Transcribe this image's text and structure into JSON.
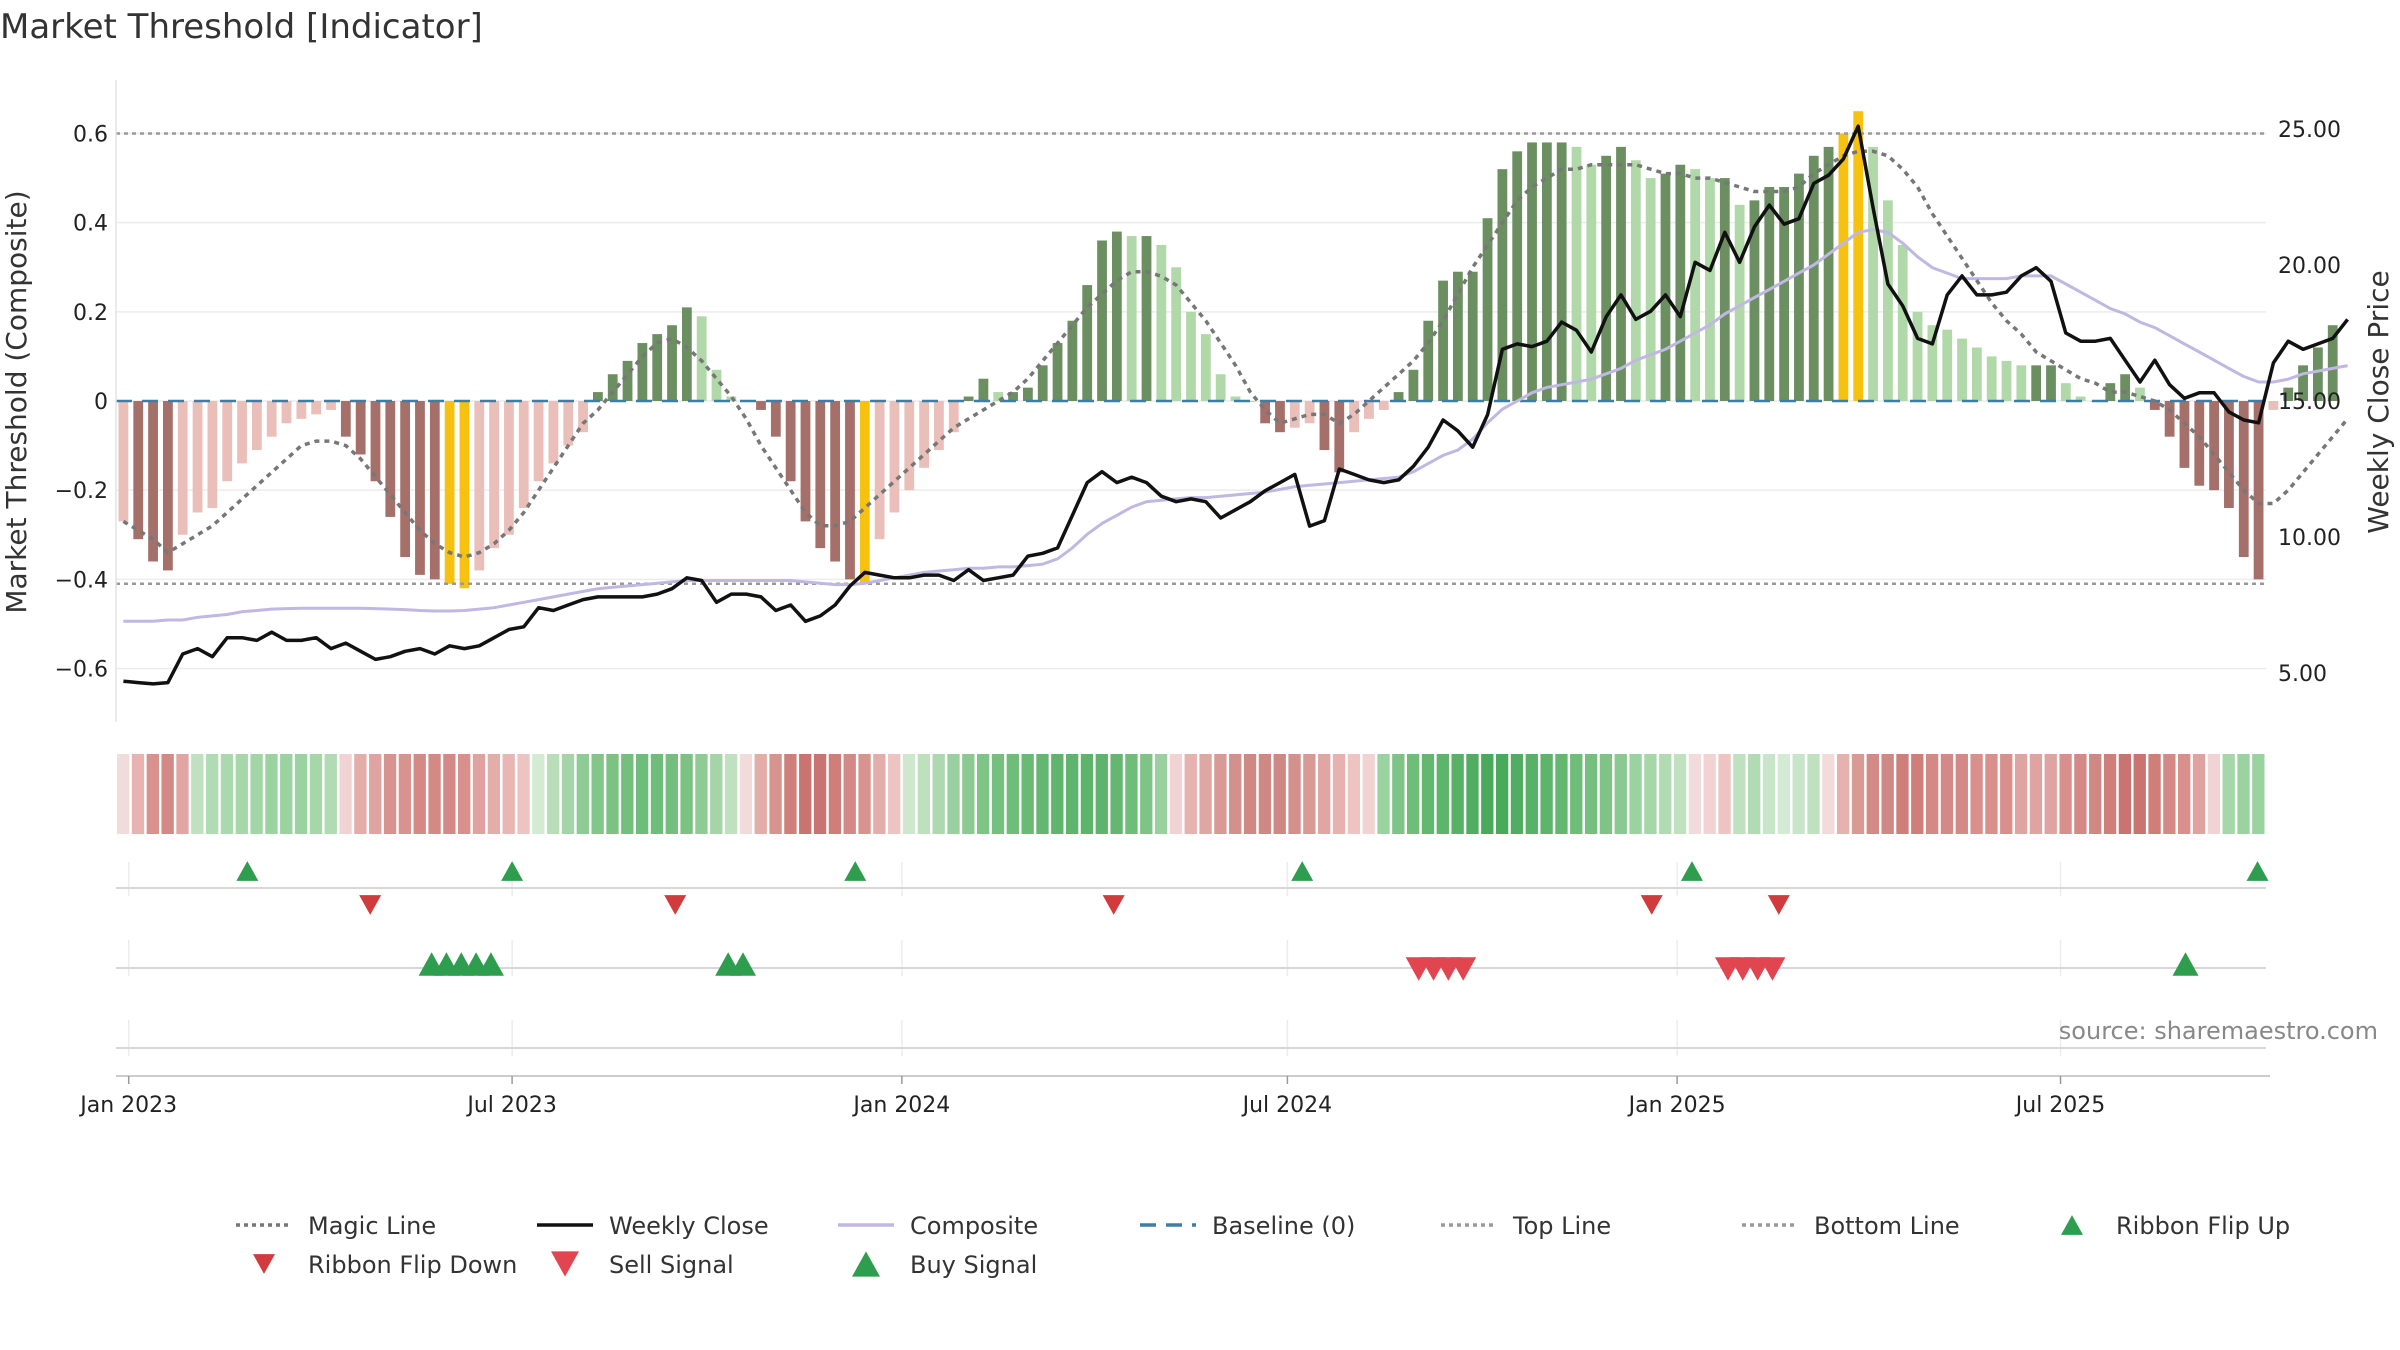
{
  "chart_data": {
    "type": "bar",
    "title": "Market Threshold [Indicator]",
    "ylabel_left": "Market Threshold (Composite)",
    "ylabel_right": "Weekly Close Price",
    "source": "source: sharemaestro.com",
    "ylim_left": [
      -0.72,
      0.72
    ],
    "ylim_right": [
      3.2,
      26.8
    ],
    "yticks_left": [
      -0.6,
      -0.4,
      -0.2,
      0,
      0.2,
      0.4,
      0.6
    ],
    "yticks_left_labels": [
      "−0.6",
      "−0.4",
      "−0.2",
      "0",
      "0.2",
      "0.4",
      "0.6"
    ],
    "yticks_right": [
      5,
      10,
      15,
      20,
      25
    ],
    "yticks_right_labels": [
      "5.00",
      "10.00",
      "15.00",
      "20.00",
      "25.00"
    ],
    "x_start": "2022-12-26",
    "x_end": "2025-10-06",
    "x_ticks": [
      {
        "date": "2023-01-01",
        "label": "Jan 2023"
      },
      {
        "date": "2023-07-01",
        "label": "Jul 2023"
      },
      {
        "date": "2024-01-01",
        "label": "Jan 2024"
      },
      {
        "date": "2024-07-01",
        "label": "Jul 2024"
      },
      {
        "date": "2025-01-01",
        "label": "Jan 2025"
      },
      {
        "date": "2025-07-01",
        "label": "Jul 2025"
      }
    ],
    "top_line": 0.6,
    "bottom_line": -0.41,
    "baseline": 0,
    "composite_bars": [
      -0.27,
      -0.31,
      -0.36,
      -0.38,
      -0.3,
      -0.25,
      -0.24,
      -0.18,
      -0.14,
      -0.11,
      -0.08,
      -0.05,
      -0.04,
      -0.03,
      -0.02,
      -0.08,
      -0.12,
      -0.18,
      -0.26,
      -0.35,
      -0.39,
      -0.4,
      -0.41,
      -0.42,
      -0.38,
      -0.33,
      -0.3,
      -0.24,
      -0.18,
      -0.14,
      -0.1,
      -0.07,
      0.02,
      0.06,
      0.09,
      0.13,
      0.15,
      0.17,
      0.21,
      0.19,
      0.07,
      0.01,
      0.0,
      -0.02,
      -0.08,
      -0.18,
      -0.27,
      -0.33,
      -0.36,
      -0.4,
      -0.41,
      -0.31,
      -0.25,
      -0.2,
      -0.15,
      -0.11,
      -0.07,
      0.01,
      0.05,
      0.02,
      0.02,
      0.03,
      0.08,
      0.13,
      0.18,
      0.26,
      0.36,
      0.38,
      0.37,
      0.37,
      0.35,
      0.3,
      0.2,
      0.15,
      0.06,
      0.01,
      0.0,
      -0.05,
      -0.07,
      -0.06,
      -0.05,
      -0.11,
      -0.16,
      -0.07,
      -0.04,
      -0.02,
      0.02,
      0.07,
      0.18,
      0.27,
      0.29,
      0.29,
      0.41,
      0.52,
      0.56,
      0.58,
      0.58,
      0.58,
      0.57,
      0.53,
      0.55,
      0.57,
      0.54,
      0.5,
      0.51,
      0.53,
      0.52,
      0.5,
      0.5,
      0.44,
      0.45,
      0.48,
      0.48,
      0.51,
      0.55,
      0.57,
      0.6,
      0.65,
      0.57,
      0.45,
      0.35,
      0.2,
      0.17,
      0.16,
      0.14,
      0.12,
      0.1,
      0.09,
      0.08,
      0.08,
      0.08,
      0.04,
      0.01,
      0.0,
      0.04,
      0.06,
      0.03,
      -0.02,
      -0.08,
      -0.15,
      -0.19,
      -0.2,
      -0.24,
      -0.35,
      -0.4,
      -0.02,
      0.03,
      0.08,
      0.12,
      0.17
    ],
    "bar_colors": {
      "strong_pos": "#6c8f62",
      "weak_pos": "#b1d8a8",
      "strong_neg": "#a56f6a",
      "weak_neg": "#eabfb9",
      "extreme": "#f7c20f"
    },
    "magic_line": [
      -0.27,
      -0.29,
      -0.31,
      -0.34,
      -0.32,
      -0.3,
      -0.28,
      -0.25,
      -0.22,
      -0.19,
      -0.16,
      -0.13,
      -0.1,
      -0.09,
      -0.09,
      -0.1,
      -0.13,
      -0.17,
      -0.21,
      -0.25,
      -0.29,
      -0.32,
      -0.34,
      -0.35,
      -0.34,
      -0.32,
      -0.29,
      -0.25,
      -0.2,
      -0.15,
      -0.1,
      -0.05,
      -0.02,
      0.02,
      0.06,
      0.1,
      0.13,
      0.14,
      0.12,
      0.09,
      0.05,
      0.01,
      -0.04,
      -0.1,
      -0.15,
      -0.2,
      -0.25,
      -0.28,
      -0.28,
      -0.27,
      -0.24,
      -0.21,
      -0.18,
      -0.15,
      -0.12,
      -0.09,
      -0.06,
      -0.04,
      -0.02,
      0.0,
      0.02,
      0.05,
      0.09,
      0.13,
      0.17,
      0.21,
      0.24,
      0.27,
      0.29,
      0.29,
      0.28,
      0.26,
      0.22,
      0.18,
      0.13,
      0.08,
      0.02,
      -0.02,
      -0.05,
      -0.04,
      -0.03,
      -0.03,
      -0.05,
      -0.03,
      0.0,
      0.03,
      0.06,
      0.09,
      0.13,
      0.18,
      0.24,
      0.3,
      0.35,
      0.4,
      0.45,
      0.48,
      0.5,
      0.52,
      0.52,
      0.53,
      0.53,
      0.53,
      0.53,
      0.52,
      0.51,
      0.51,
      0.5,
      0.5,
      0.49,
      0.48,
      0.47,
      0.47,
      0.47,
      0.48,
      0.51,
      0.53,
      0.55,
      0.56,
      0.56,
      0.55,
      0.52,
      0.48,
      0.42,
      0.37,
      0.32,
      0.27,
      0.22,
      0.18,
      0.15,
      0.11,
      0.09,
      0.07,
      0.05,
      0.04,
      0.02,
      0.02,
      0.01,
      0.0,
      -0.02,
      -0.05,
      -0.08,
      -0.12,
      -0.16,
      -0.2,
      -0.23,
      -0.23,
      -0.2,
      -0.16,
      -0.12,
      -0.08,
      -0.04
    ],
    "weekly_close": [
      4.7,
      4.65,
      4.6,
      4.65,
      5.7,
      5.9,
      5.6,
      6.3,
      6.3,
      6.2,
      6.5,
      6.2,
      6.2,
      6.3,
      5.9,
      6.1,
      5.8,
      5.5,
      5.6,
      5.8,
      5.9,
      5.7,
      6.0,
      5.9,
      6.0,
      6.3,
      6.6,
      6.7,
      7.4,
      7.3,
      7.5,
      7.7,
      7.8,
      7.8,
      7.8,
      7.8,
      7.9,
      8.1,
      8.5,
      8.4,
      7.6,
      7.9,
      7.9,
      7.8,
      7.3,
      7.5,
      6.9,
      7.1,
      7.5,
      8.2,
      8.7,
      8.6,
      8.5,
      8.5,
      8.6,
      8.6,
      8.4,
      8.8,
      8.4,
      8.5,
      8.6,
      9.3,
      9.4,
      9.6,
      10.8,
      12.0,
      12.4,
      12.0,
      12.2,
      12.0,
      11.5,
      11.3,
      11.4,
      11.3,
      10.7,
      11.0,
      11.3,
      11.7,
      12.0,
      12.3,
      10.4,
      10.6,
      12.5,
      12.3,
      12.1,
      12.0,
      12.1,
      12.6,
      13.3,
      14.3,
      13.9,
      13.3,
      14.5,
      16.9,
      17.1,
      17.0,
      17.2,
      17.9,
      17.6,
      16.8,
      18.1,
      18.9,
      18.0,
      18.3,
      18.9,
      18.1,
      20.1,
      19.8,
      21.2,
      20.1,
      21.4,
      22.2,
      21.5,
      21.7,
      23.0,
      23.3,
      23.9,
      25.1,
      22.1,
      19.3,
      18.5,
      17.3,
      17.1,
      18.9,
      19.6,
      18.9,
      18.9,
      19.0,
      19.6,
      19.9,
      19.4,
      17.5,
      17.2,
      17.2,
      17.3,
      16.5,
      15.7,
      16.5,
      15.6,
      15.1,
      15.3,
      15.3,
      14.6,
      14.3,
      14.2,
      16.4,
      17.2,
      16.9,
      17.1,
      17.3,
      18.0
    ],
    "composite_price": [
      6.9,
      6.9,
      6.9,
      6.95,
      6.95,
      7.05,
      7.1,
      7.15,
      7.25,
      7.3,
      7.35,
      7.37,
      7.38,
      7.38,
      7.38,
      7.38,
      7.38,
      7.37,
      7.35,
      7.33,
      7.3,
      7.28,
      7.28,
      7.3,
      7.35,
      7.4,
      7.5,
      7.6,
      7.7,
      7.8,
      7.9,
      8.0,
      8.1,
      8.15,
      8.2,
      8.25,
      8.3,
      8.35,
      8.4,
      8.4,
      8.4,
      8.4,
      8.4,
      8.4,
      8.4,
      8.4,
      8.35,
      8.3,
      8.25,
      8.25,
      8.3,
      8.4,
      8.5,
      8.6,
      8.7,
      8.75,
      8.8,
      8.85,
      8.85,
      8.9,
      8.9,
      8.95,
      9.0,
      9.2,
      9.6,
      10.1,
      10.5,
      10.8,
      11.1,
      11.3,
      11.35,
      11.4,
      11.45,
      11.45,
      11.5,
      11.55,
      11.6,
      11.65,
      11.75,
      11.85,
      11.9,
      11.95,
      12.0,
      12.05,
      12.1,
      12.15,
      12.2,
      12.4,
      12.7,
      13.0,
      13.2,
      13.6,
      14.2,
      14.7,
      15.0,
      15.3,
      15.5,
      15.6,
      15.7,
      15.8,
      16.0,
      16.2,
      16.5,
      16.7,
      16.9,
      17.2,
      17.5,
      17.8,
      18.2,
      18.5,
      18.8,
      19.1,
      19.4,
      19.7,
      20.0,
      20.4,
      20.8,
      21.2,
      21.3,
      21.2,
      20.8,
      20.3,
      19.9,
      19.7,
      19.5,
      19.5,
      19.5,
      19.5,
      19.6,
      19.6,
      19.6,
      19.3,
      19.0,
      18.7,
      18.4,
      18.2,
      17.9,
      17.7,
      17.4,
      17.1,
      16.8,
      16.5,
      16.2,
      15.9,
      15.7,
      15.7,
      15.8,
      16.0,
      16.1,
      16.2,
      16.3
    ],
    "ribbon_colors": [
      "#f2dcdb",
      "#e8b3b0",
      "#d9918d",
      "#d48986",
      "#e0a6a3",
      "#bfe1c0",
      "#b1dbb3",
      "#abd9ae",
      "#a5d7a8",
      "#a1d6a6",
      "#9ad3a0",
      "#9ad3a0",
      "#9ad3a0",
      "#a5d7a8",
      "#b1dbb3",
      "#f0d3d2",
      "#e3adaa",
      "#dfa4a1",
      "#d9938f",
      "#d9938f",
      "#d48986",
      "#d48986",
      "#d48986",
      "#d98f8b",
      "#e0a2a0",
      "#e3adaa",
      "#e8b7b5",
      "#eec4c2",
      "#d3ebd2",
      "#b8ddb8",
      "#a4d4a7",
      "#8fcb94",
      "#83c68a",
      "#7bc283",
      "#74bf7e",
      "#6fbd7a",
      "#6fbd7a",
      "#74bf7e",
      "#7bc283",
      "#8fcb94",
      "#a4d4a7",
      "#bfe1c0",
      "#f2dcdb",
      "#e3adaa",
      "#d9938f",
      "#cf7e79",
      "#c97470",
      "#c97470",
      "#cf7e79",
      "#d48986",
      "#d9938f",
      "#e3adaa",
      "#eec4c2",
      "#cde8cd",
      "#bde0bd",
      "#aed8b0",
      "#9ad0a0",
      "#8bc992",
      "#7fc487",
      "#76c07f",
      "#6ebd79",
      "#68ba74",
      "#63b770",
      "#60b56e",
      "#5eb46c",
      "#5db46b",
      "#5eb46c",
      "#63b770",
      "#6ebd79",
      "#7fc487",
      "#9ad0a0",
      "#f0d3d2",
      "#e6b1ae",
      "#e0a6a3",
      "#d99a96",
      "#d4908c",
      "#d08884",
      "#d08884",
      "#d08884",
      "#d4908c",
      "#d99a96",
      "#e0a6a3",
      "#e6b1ae",
      "#eec4c2",
      "#f0d3d2",
      "#9ad3a0",
      "#7fc487",
      "#6ebd79",
      "#63b770",
      "#5db46b",
      "#57b167",
      "#50ad61",
      "#4aaa5c",
      "#4aaa5c",
      "#50ad61",
      "#57b167",
      "#5db46b",
      "#63b770",
      "#6ebd79",
      "#76c07f",
      "#7fc487",
      "#8bc992",
      "#9ad3a0",
      "#a5d7a8",
      "#b1dbb3",
      "#bfe1c0",
      "#f2dcdb",
      "#f0d3d2",
      "#eec4c2",
      "#bfe1c0",
      "#b1dbb3",
      "#c9e5c9",
      "#d3ebd2",
      "#c9e5c9",
      "#bfe1c0",
      "#f2dcdb",
      "#e6b1ae",
      "#d99a96",
      "#d48986",
      "#d08884",
      "#cf7e79",
      "#cf7e79",
      "#d48986",
      "#d48986",
      "#d48986",
      "#d98f8b",
      "#d98f8b",
      "#d98f8b",
      "#dfa4a1",
      "#dfa4a1",
      "#dfa4a1",
      "#d98f8b",
      "#d48986",
      "#d08884",
      "#cf7e79",
      "#c97470",
      "#c97470",
      "#cf7e79",
      "#d48986",
      "#d98f8b",
      "#e0a2a0",
      "#f0d3d2",
      "#a5d7a8",
      "#9ad3a0",
      "#9ad3a0"
    ],
    "ribbon_flip_up": [
      "2023-02-26",
      "2023-07-01",
      "2023-12-10",
      "2024-07-08",
      "2025-01-08",
      "2025-10-02"
    ],
    "ribbon_flip_down": [
      "2023-04-25",
      "2023-09-16",
      "2024-04-10",
      "2024-12-20",
      "2025-02-18"
    ],
    "buy_signal": [
      "2023-05-24",
      "2023-05-31",
      "2023-06-07",
      "2023-06-14",
      "2023-06-21",
      "2023-10-11",
      "2023-10-18",
      "2025-08-29"
    ],
    "sell_signal": [
      "2024-09-01",
      "2024-09-08",
      "2024-09-15",
      "2024-09-22",
      "2025-01-25",
      "2025-02-01",
      "2025-02-08",
      "2025-02-15"
    ],
    "legend": [
      {
        "label": "Magic Line",
        "kind": "line",
        "color": "#777777",
        "dash": "dotted"
      },
      {
        "label": "Weekly Close",
        "kind": "line",
        "color": "#111111",
        "dash": "solid"
      },
      {
        "label": "Composite",
        "kind": "line",
        "color": "#c0b7e2",
        "dash": "solid"
      },
      {
        "label": "Baseline (0)",
        "kind": "line",
        "color": "#3d7ea6",
        "dash": "dashed"
      },
      {
        "label": "Top Line",
        "kind": "line",
        "color": "#999999",
        "dash": "dotted"
      },
      {
        "label": "Bottom Line",
        "kind": "line",
        "color": "#999999",
        "dash": "dotted"
      },
      {
        "label": "Ribbon Flip Up",
        "kind": "tri-up",
        "color": "#2e9e4e"
      },
      {
        "label": "Ribbon Flip Down",
        "kind": "tri-down",
        "color": "#d13b3b"
      },
      {
        "label": "Sell Signal",
        "kind": "tri-down",
        "color": "#e04550"
      },
      {
        "label": "Buy Signal",
        "kind": "tri-up",
        "color": "#2e9e4e"
      }
    ],
    "colors": {
      "magic": "#777777",
      "close": "#111111",
      "composite": "#c0b7e2",
      "baseline": "#3d7ea6",
      "refline": "#999999",
      "grid": "#ececec",
      "up": "#2e9e4e",
      "down": "#d13b3b",
      "sell": "#e04550"
    }
  }
}
